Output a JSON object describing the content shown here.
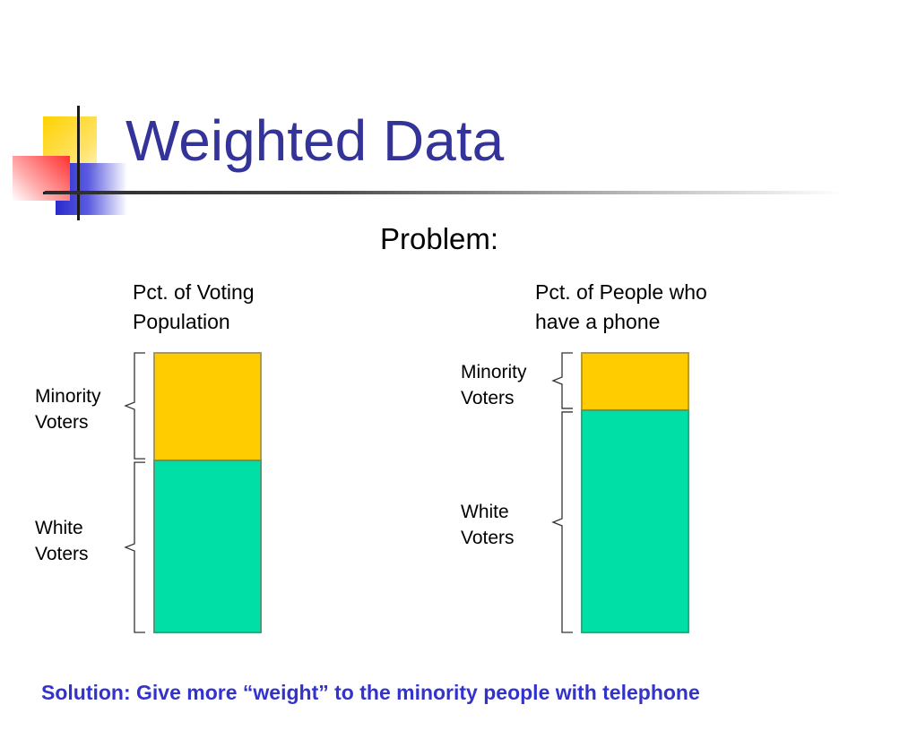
{
  "slide": {
    "title": "Weighted Data",
    "subtitle": "Problem:",
    "footer": "Solution: Give more “weight” to the minority people with telephone"
  },
  "left_column": {
    "heading_line1": "Pct. of Voting",
    "heading_line2": "Population",
    "minority_label_line1": "Minority",
    "minority_label_line2": "Voters",
    "white_label_line1": "White",
    "white_label_line2": "Voters",
    "minority_share": 0.385
  },
  "right_column": {
    "heading_line1": "Pct. of People who",
    "heading_line2": "have a phone",
    "minority_label_line1": "Minority",
    "minority_label_line2": "Voters",
    "white_label_line1": "White",
    "white_label_line2": "Voters",
    "minority_share": 0.205
  },
  "colors": {
    "title": "#333399",
    "footer": "#3333cc",
    "minority_fill": "#ffcc00",
    "white_fill": "#00e0a6",
    "bar_border": "#b59a3a",
    "white_border": "#3fa07c",
    "bracket": "#333333"
  },
  "icons": {
    "logo": "decorative-squares-logo"
  }
}
